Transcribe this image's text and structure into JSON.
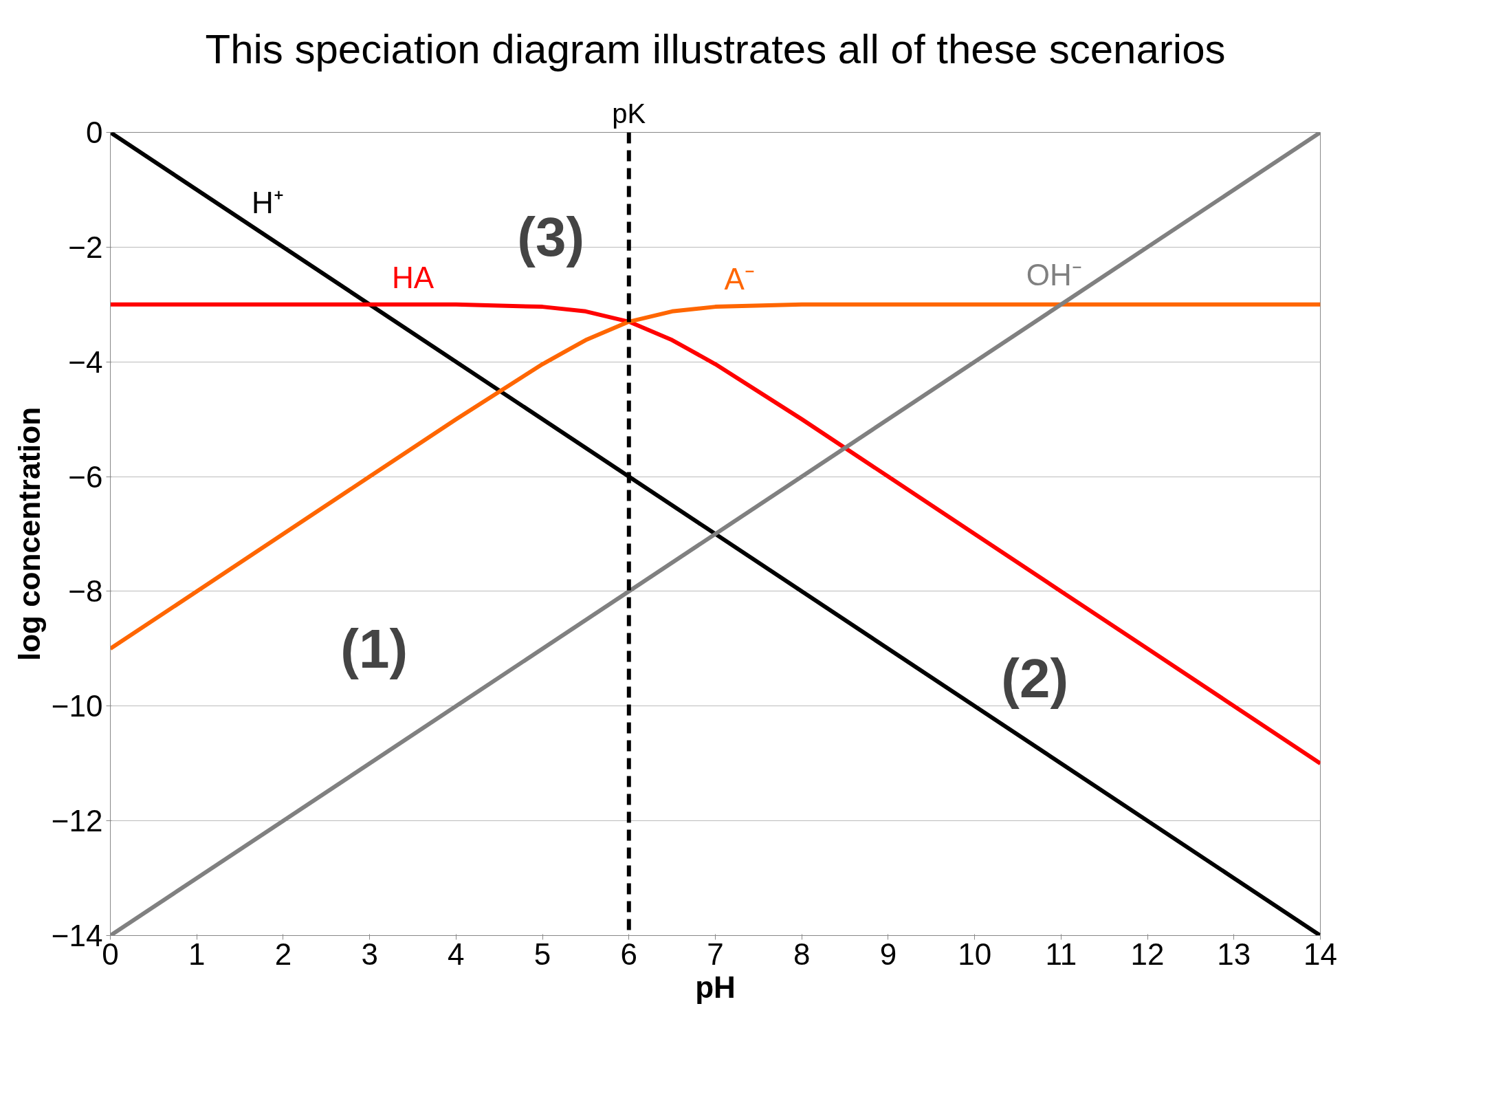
{
  "chart_data": {
    "type": "line",
    "title": "This speciation diagram illustrates all of these scenarios",
    "xlabel": "pH",
    "ylabel": "log concentration",
    "xlim": [
      0,
      14
    ],
    "ylim": [
      -14,
      0
    ],
    "xticks": [
      0,
      1,
      2,
      3,
      4,
      5,
      6,
      7,
      8,
      9,
      10,
      11,
      12,
      13,
      14
    ],
    "yticks": [
      0,
      -2,
      -4,
      -6,
      -8,
      -10,
      -12,
      -14
    ],
    "grid": "y",
    "marker": "none",
    "line_style": "solid",
    "series": [
      {
        "name": "H⁺",
        "color": "#000000",
        "x": [
          0,
          14
        ],
        "values": [
          0,
          -14
        ]
      },
      {
        "name": "HA",
        "color": "#ff0000",
        "x": [
          0,
          4,
          5,
          5.5,
          6,
          6.5,
          7,
          8,
          9,
          10,
          11,
          12,
          13,
          14
        ],
        "values": [
          -3,
          -3,
          -3.04,
          -3.12,
          -3.3,
          -3.62,
          -4.04,
          -5,
          -6,
          -7,
          -8,
          -9,
          -10,
          -11
        ]
      },
      {
        "name": "A⁻",
        "color": "#ff6600",
        "x": [
          0,
          1,
          2,
          3,
          4,
          5,
          5.5,
          6,
          6.5,
          7,
          8,
          14
        ],
        "values": [
          -9,
          -8,
          -7,
          -6,
          -5,
          -4.04,
          -3.62,
          -3.3,
          -3.12,
          -3.04,
          -3,
          -3
        ]
      },
      {
        "name": "OH⁻",
        "color": "#808080",
        "x": [
          0,
          14
        ],
        "values": [
          -14,
          0
        ]
      }
    ],
    "ref_lines": [
      {
        "axis": "x",
        "value": 6,
        "label": "pK",
        "color": "#000000",
        "line_style": "dashed"
      }
    ],
    "annotations": [
      "(1)",
      "(2)",
      "(3)"
    ]
  }
}
